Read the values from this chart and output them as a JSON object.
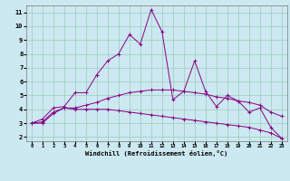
{
  "xlabel": "Windchill (Refroidissement éolien,°C)",
  "bg_color": "#cce8f0",
  "grid_color": "#99ccbb",
  "line_color": "#880088",
  "xlim": [
    -0.5,
    23.5
  ],
  "ylim": [
    1.7,
    11.5
  ],
  "yticks": [
    2,
    3,
    4,
    5,
    6,
    7,
    8,
    9,
    10,
    11
  ],
  "xticks": [
    0,
    1,
    2,
    3,
    4,
    5,
    6,
    7,
    8,
    9,
    10,
    11,
    12,
    13,
    14,
    15,
    16,
    17,
    18,
    19,
    20,
    21,
    22,
    23
  ],
  "series": [
    {
      "x": [
        0,
        1,
        2,
        3,
        4,
        5,
        6,
        7,
        8,
        9,
        10,
        11,
        12,
        13,
        14,
        15,
        16,
        17,
        18,
        19,
        20,
        21,
        22,
        23
      ],
      "y": [
        3.0,
        3.3,
        4.1,
        4.2,
        5.2,
        5.2,
        6.5,
        7.5,
        8.0,
        9.4,
        8.7,
        11.2,
        9.6,
        4.7,
        5.3,
        7.5,
        5.3,
        4.2,
        5.0,
        4.6,
        3.8,
        4.1,
        2.7,
        1.9
      ]
    },
    {
      "x": [
        0,
        1,
        2,
        3,
        4,
        5,
        6,
        7,
        8,
        9,
        10,
        11,
        12,
        13,
        14,
        15,
        16,
        17,
        18,
        19,
        20,
        21,
        22,
        23
      ],
      "y": [
        3.0,
        3.1,
        3.8,
        4.1,
        4.1,
        4.3,
        4.5,
        4.8,
        5.0,
        5.2,
        5.3,
        5.4,
        5.4,
        5.4,
        5.3,
        5.2,
        5.1,
        4.9,
        4.8,
        4.6,
        4.5,
        4.3,
        3.8,
        3.5
      ]
    },
    {
      "x": [
        0,
        1,
        2,
        3,
        4,
        5,
        6,
        7,
        8,
        9,
        10,
        11,
        12,
        13,
        14,
        15,
        16,
        17,
        18,
        19,
        20,
        21,
        22,
        23
      ],
      "y": [
        3.0,
        3.0,
        3.7,
        4.1,
        4.0,
        4.0,
        4.0,
        4.0,
        3.9,
        3.8,
        3.7,
        3.6,
        3.5,
        3.4,
        3.3,
        3.2,
        3.1,
        3.0,
        2.9,
        2.8,
        2.7,
        2.5,
        2.3,
        1.9
      ]
    }
  ]
}
